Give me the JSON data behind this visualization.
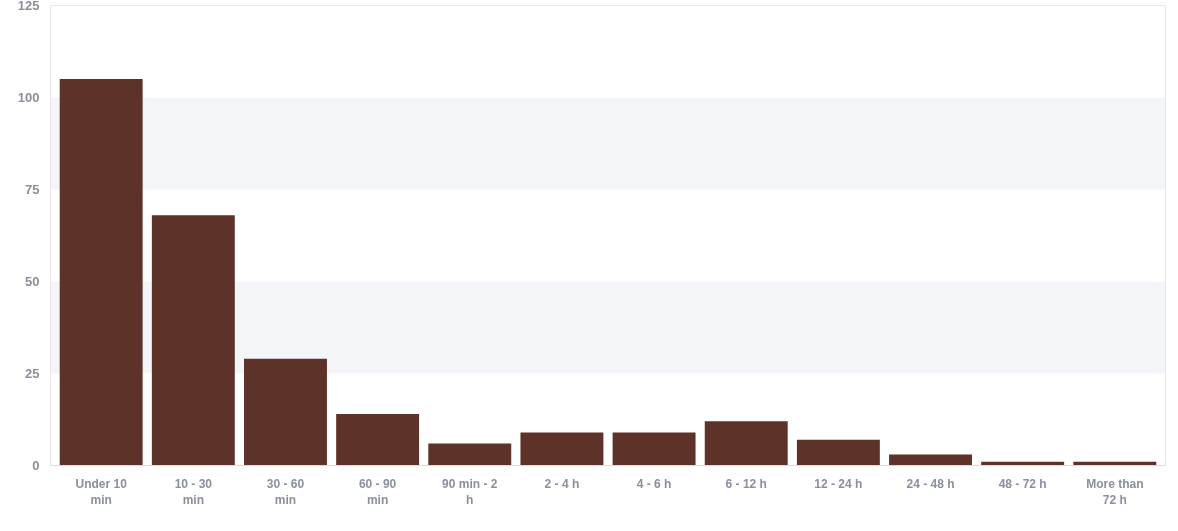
{
  "chart_data": {
    "type": "bar",
    "categories": [
      "Under 10 min",
      "10 - 30 min",
      "30 - 60 min",
      "60 - 90 min",
      "90 min - 2 h",
      "2 - 4 h",
      "4 - 6 h",
      "6 - 12 h",
      "12 - 24 h",
      "24 - 48 h",
      "48 - 72 h",
      "More than 72 h"
    ],
    "values": [
      105,
      68,
      29,
      14,
      6,
      9,
      9,
      12,
      7,
      3,
      1,
      1
    ],
    "color": "#5c3229",
    "ylim": [
      0,
      125
    ],
    "yticks": [
      0,
      25,
      50,
      75,
      100,
      125
    ]
  }
}
